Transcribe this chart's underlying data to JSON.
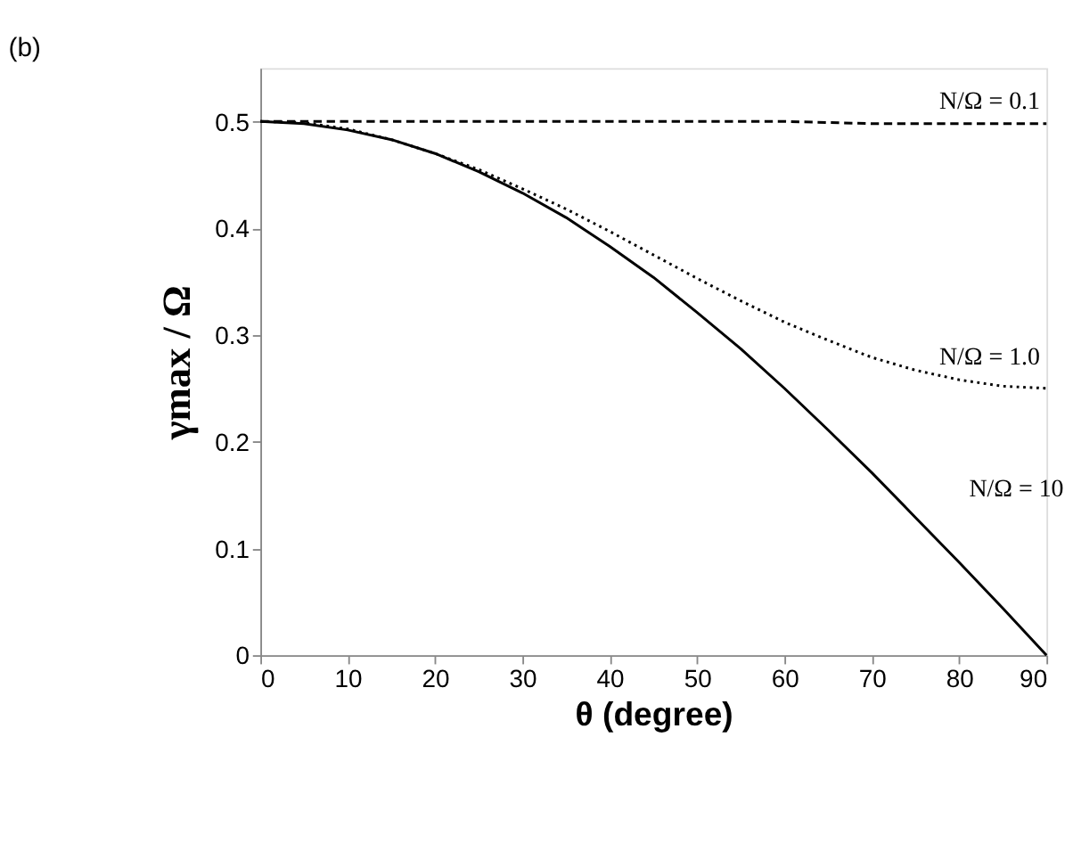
{
  "chart_data": {
    "type": "line",
    "title": "(b)",
    "xlabel": "θ (degree)",
    "ylabel": "γmax / Ω",
    "x": [
      0,
      5,
      10,
      15,
      20,
      25,
      30,
      35,
      40,
      45,
      50,
      55,
      60,
      65,
      70,
      75,
      80,
      85,
      90
    ],
    "series": [
      {
        "name": "N/Ω = 0.1",
        "color": "#000000",
        "line_style": "dashed",
        "values": [
          0.5,
          0.5,
          0.5,
          0.5,
          0.5,
          0.5,
          0.5,
          0.5,
          0.5,
          0.5,
          0.5,
          0.5,
          0.5,
          0.499,
          0.498,
          0.498,
          0.498,
          0.498,
          0.498
        ]
      },
      {
        "name": "N/Ω = 1.0",
        "color": "#000000",
        "line_style": "dotted",
        "values": [
          0.5,
          0.499,
          0.493,
          0.483,
          0.47,
          0.455,
          0.437,
          0.418,
          0.397,
          0.375,
          0.353,
          0.332,
          0.312,
          0.295,
          0.279,
          0.267,
          0.258,
          0.252,
          0.25
        ]
      },
      {
        "name": "N/Ω = 10",
        "color": "#000000",
        "line_style": "solid",
        "values": [
          0.5,
          0.498,
          0.492,
          0.483,
          0.47,
          0.453,
          0.433,
          0.41,
          0.383,
          0.354,
          0.321,
          0.287,
          0.25,
          0.211,
          0.171,
          0.129,
          0.087,
          0.044,
          0.0
        ]
      }
    ],
    "xlim": [
      0,
      90
    ],
    "ylim": [
      0,
      0.55
    ],
    "xticks": [
      0,
      10,
      20,
      30,
      40,
      50,
      60,
      70,
      80,
      90
    ],
    "yticks": [
      0,
      0.1,
      0.2,
      0.3,
      0.4,
      0.5
    ],
    "grid": false,
    "marker": "none"
  }
}
